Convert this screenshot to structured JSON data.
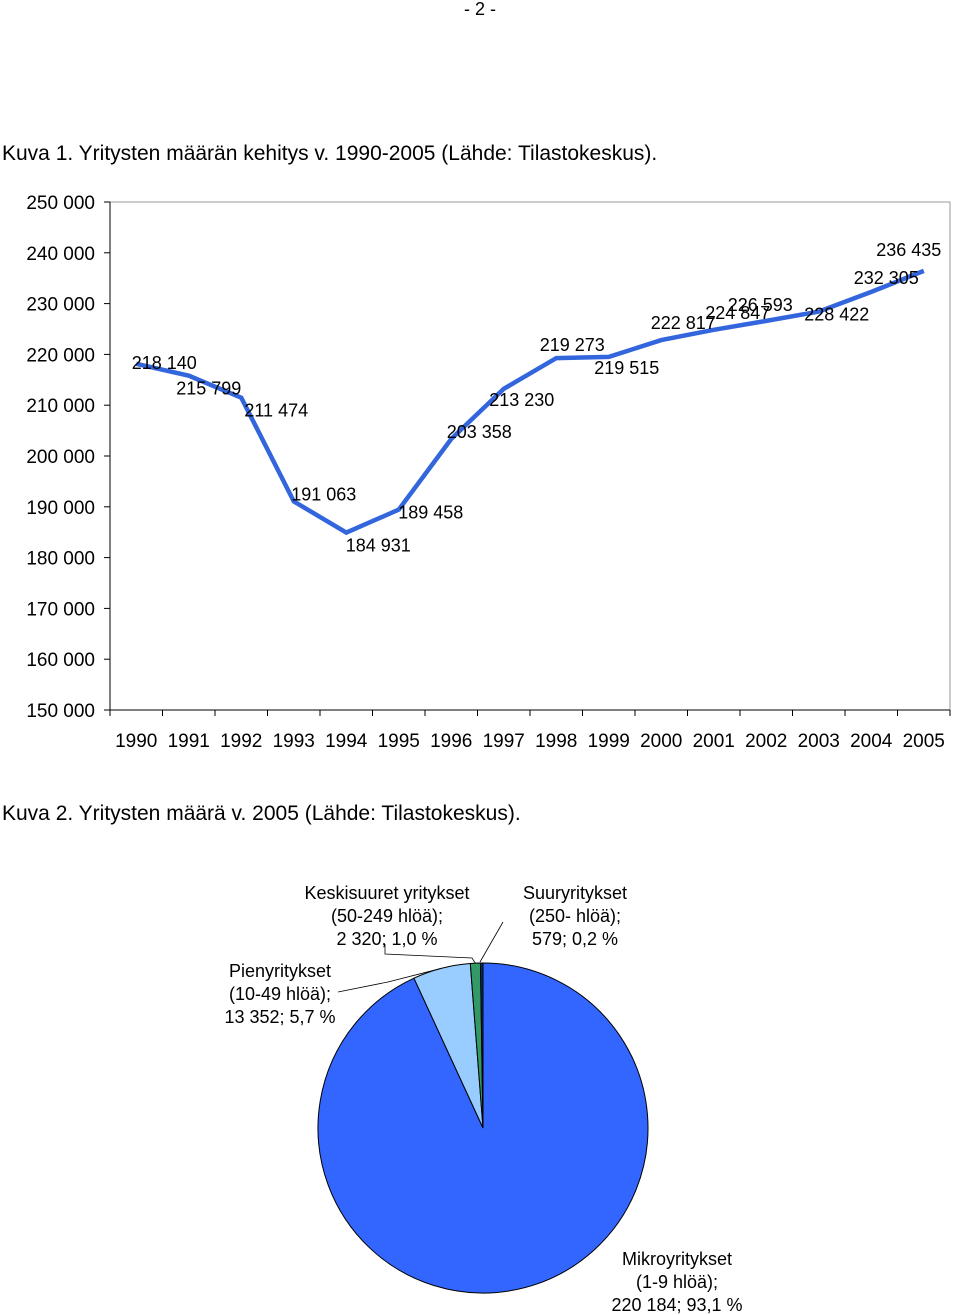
{
  "page": {
    "number": "- 2 -"
  },
  "captions": {
    "figure1": "Kuva 1. Yritysten määrän kehitys v. 1990-2005 (Lähde: Tilastokeskus).",
    "figure2": "Kuva 2. Yritysten määrä v. 2005 (Lähde: Tilastokeskus)."
  },
  "chart_data": [
    {
      "type": "line",
      "x": [
        "1990",
        "1991",
        "1992",
        "1993",
        "1994",
        "1995",
        "1996",
        "1997",
        "1998",
        "1999",
        "2000",
        "2001",
        "2002",
        "2003",
        "2004",
        "2005"
      ],
      "series": [
        {
          "values": [
            218140,
            215799,
            211474,
            191063,
            184931,
            189458,
            203358,
            213230,
            219273,
            219515,
            222817,
            224847,
            226593,
            228422,
            232305,
            236435
          ],
          "labels": [
            "218 140",
            "215 799",
            "211 474",
            "191 063",
            "184 931",
            "189 458",
            "203 358",
            "213 230",
            "219 273",
            "219 515",
            "222 817",
            "224 847",
            "226 593",
            "228 422",
            "232 305",
            "236 435"
          ],
          "color": "#3366dd"
        }
      ],
      "ylim": [
        150000,
        250000
      ],
      "yticks": [
        150000,
        160000,
        170000,
        180000,
        190000,
        200000,
        210000,
        220000,
        230000,
        240000,
        250000
      ],
      "ytick_labels": [
        "150 000",
        "160 000",
        "170 000",
        "180 000",
        "190 000",
        "200 000",
        "210 000",
        "220 000",
        "230 000",
        "240 000",
        "250 000"
      ],
      "grid": false,
      "title": "",
      "xlabel": "",
      "ylabel": ""
    },
    {
      "type": "pie",
      "slices": [
        {
          "label_lines": [
            "Mikroyritykset",
            "(1-9 hlöä);",
            "220 184; 93,1 %"
          ],
          "value": 220184,
          "percent": 93.1,
          "color": "#3366ff"
        },
        {
          "label_lines": [
            "Pienyritykset",
            "(10-49 hlöä);",
            "13 352; 5,7 %"
          ],
          "value": 13352,
          "percent": 5.7,
          "color": "#99ccff"
        },
        {
          "label_lines": [
            "Keskisuuret yritykset",
            "(50-249 hlöä);",
            "2 320; 1,0 %"
          ],
          "value": 2320,
          "percent": 1.0,
          "color": "#339966"
        },
        {
          "label_lines": [
            "Suuryritykset",
            "(250- hlöä);",
            "579; 0,2 %"
          ],
          "value": 579,
          "percent": 0.2,
          "color": "#003366"
        }
      ],
      "title": ""
    }
  ]
}
